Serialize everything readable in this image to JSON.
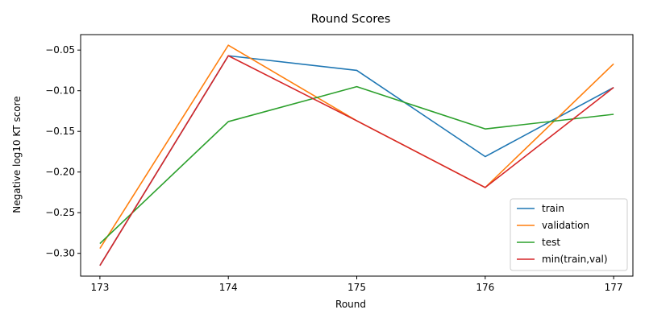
{
  "chart_data": {
    "type": "line",
    "title": "Round Scores",
    "xlabel": "Round",
    "ylabel": "Negative log10 KT score",
    "x": [
      173,
      174,
      175,
      176,
      177
    ],
    "xticks": [
      "173",
      "174",
      "175",
      "176",
      "177"
    ],
    "xlim": [
      172.85,
      177.15
    ],
    "ylim": [
      -0.328,
      -0.031
    ],
    "yticks": [
      -0.3,
      -0.25,
      -0.2,
      -0.15,
      -0.1,
      -0.05
    ],
    "ytick_labels": [
      "−0.30",
      "−0.25",
      "−0.20",
      "−0.15",
      "−0.10",
      "−0.05"
    ],
    "grid": false,
    "legend_position": "lower-right",
    "series": [
      {
        "name": "train",
        "color": "#1f77b4",
        "values": [
          -0.315,
          -0.057,
          -0.075,
          -0.181,
          -0.096
        ]
      },
      {
        "name": "validation",
        "color": "#ff7f0e",
        "values": [
          -0.294,
          -0.044,
          -0.137,
          -0.219,
          -0.067
        ]
      },
      {
        "name": "test",
        "color": "#2ca02c",
        "values": [
          -0.288,
          -0.138,
          -0.095,
          -0.147,
          -0.129
        ]
      },
      {
        "name": "min(train,val)",
        "color": "#d62728",
        "values": [
          -0.315,
          -0.057,
          -0.137,
          -0.219,
          -0.096
        ]
      }
    ]
  }
}
